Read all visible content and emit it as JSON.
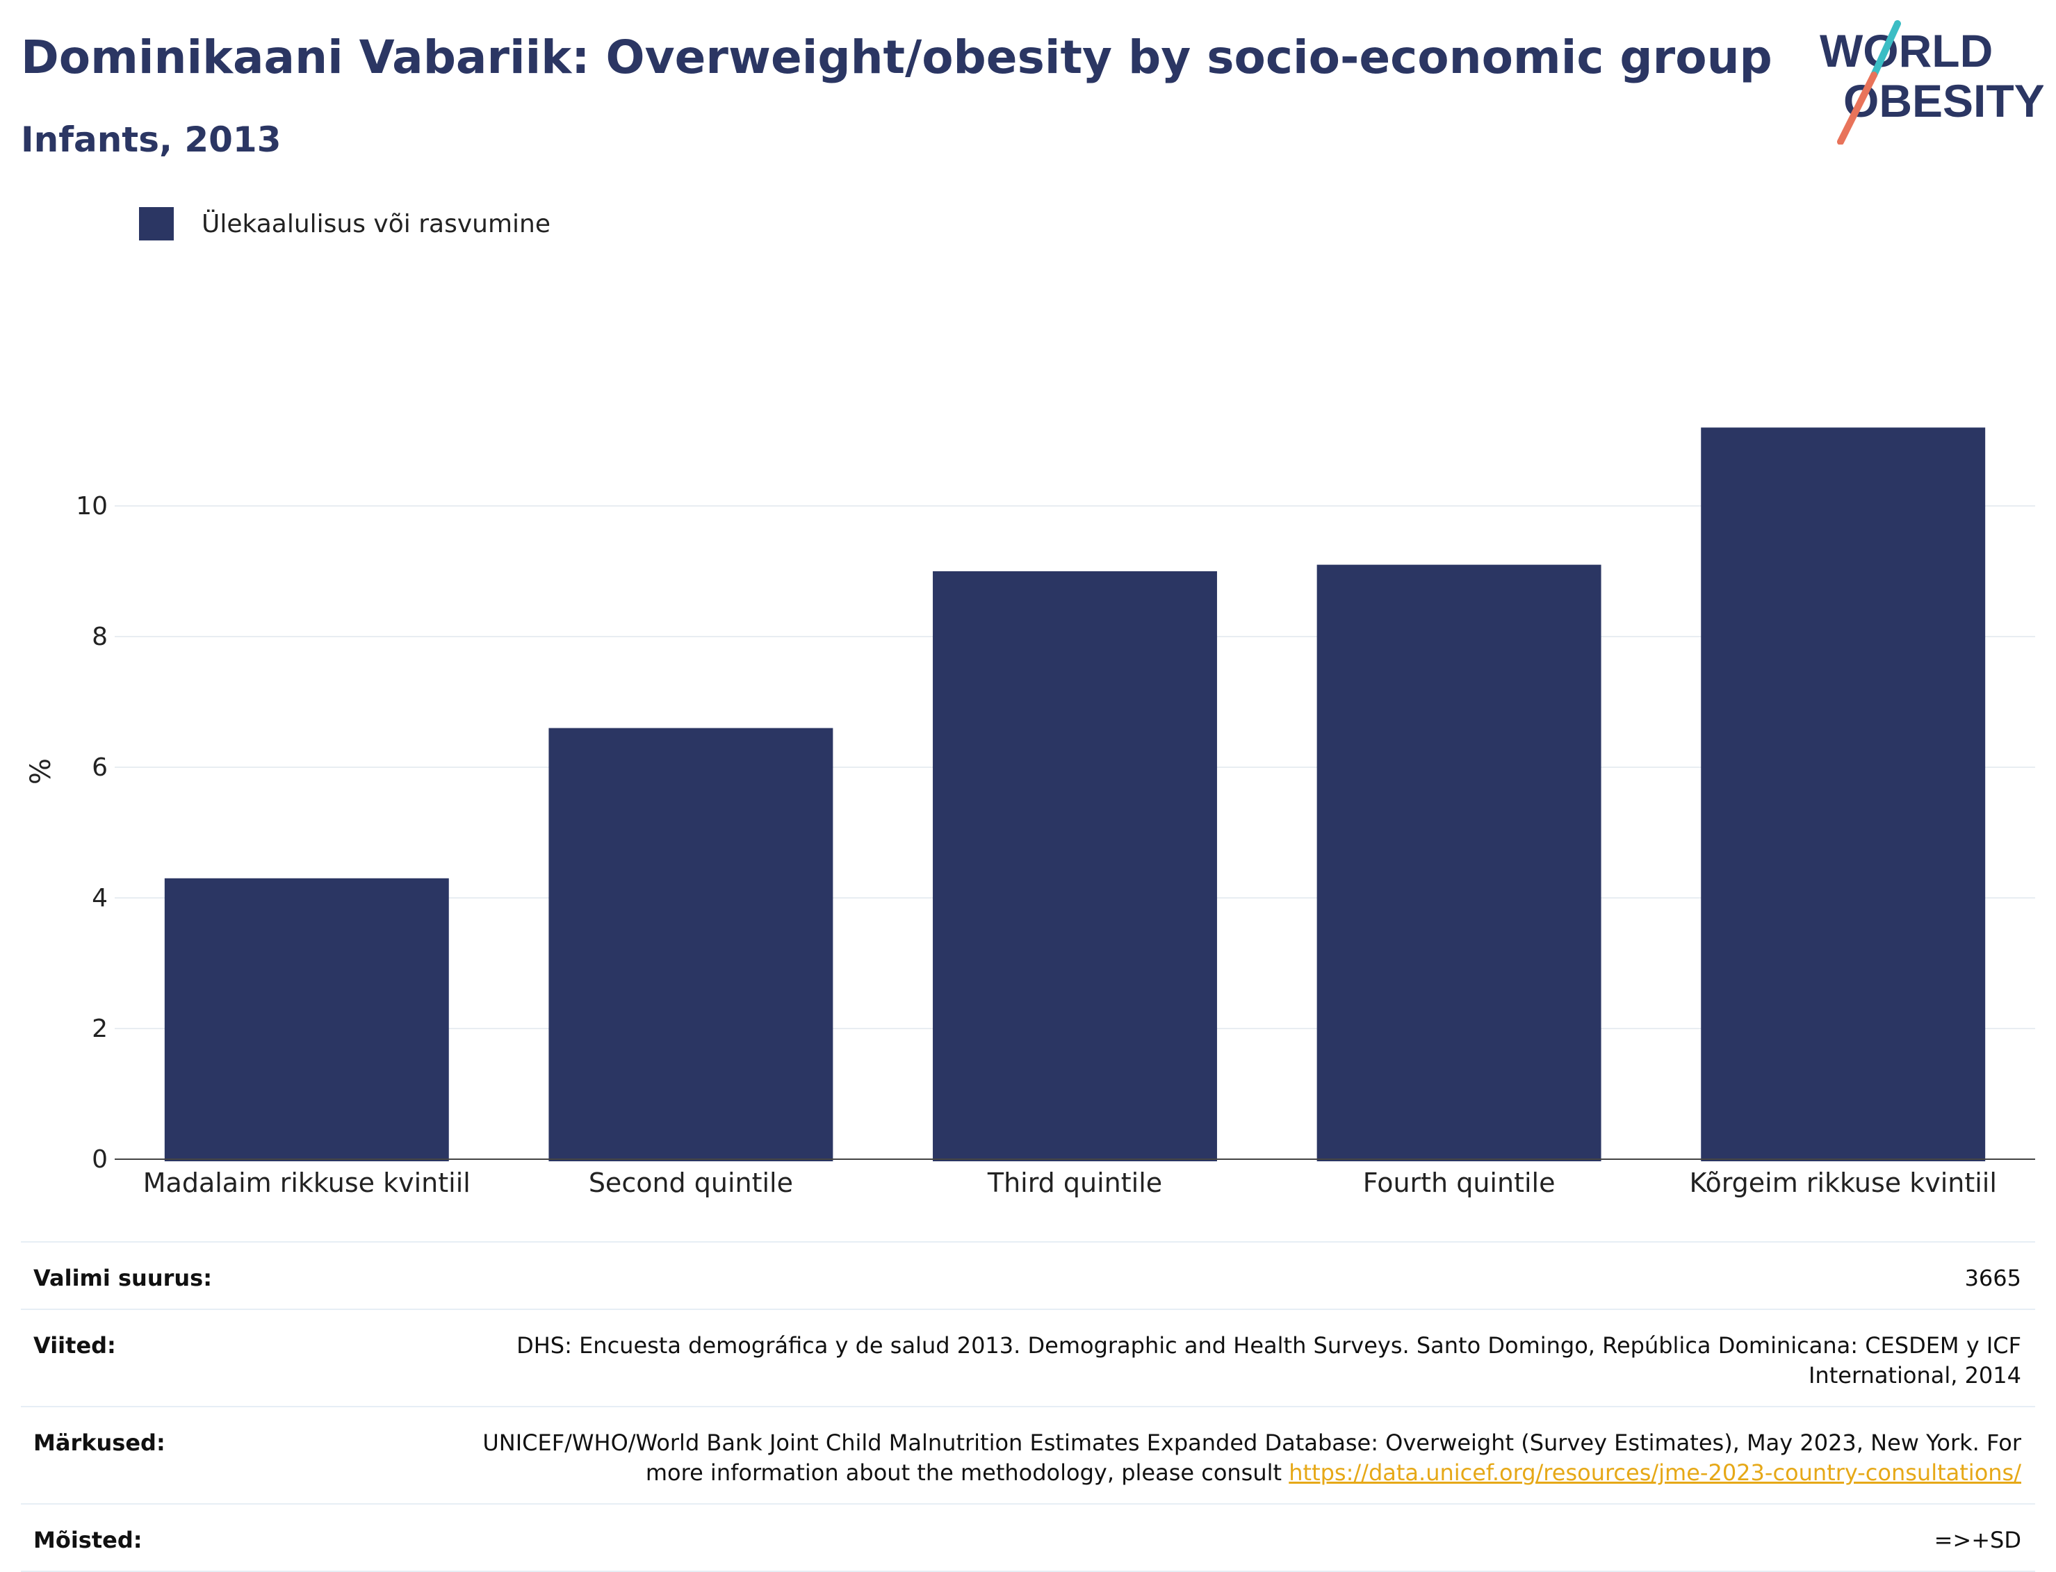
{
  "header": {
    "title": "Dominikaani Vabariik: Overweight/obesity by socio-economic group",
    "subtitle": "Infants, 2013"
  },
  "logo": {
    "line1": "WORLD",
    "line2": "OBESITY",
    "colors": {
      "text": "#2b3663",
      "slash_top": "#3bbdc4",
      "slash_bottom": "#e8735a"
    }
  },
  "legend": {
    "items": [
      {
        "label": "Ülekaalulisus või rasvumine",
        "color": "#2b3663"
      }
    ]
  },
  "chart_data": {
    "type": "bar",
    "title": "Dominikaani Vabariik: Overweight/obesity by socio-economic group",
    "subtitle": "Infants, 2013",
    "categories": [
      "Madalaim rikkuse kvintiil",
      "Second quintile",
      "Third quintile",
      "Fourth quintile",
      "Kõrgeim rikkuse kvintiil"
    ],
    "series": [
      {
        "name": "Ülekaalulisus või rasvumine",
        "values": [
          4.3,
          6.6,
          9.0,
          9.1,
          11.2
        ],
        "color": "#2b3663"
      }
    ],
    "xlabel": "",
    "ylabel": "%",
    "ylim": [
      0,
      12
    ],
    "yticks": [
      0,
      2,
      4,
      6,
      8,
      10
    ],
    "grid": true,
    "legend_position": "top-left"
  },
  "info": {
    "rows": [
      {
        "key": "Valimi suurus:",
        "value": "3665"
      },
      {
        "key": "Viited:",
        "value": "DHS: Encuesta demográfica y de salud 2013. Demographic and Health Surveys. Santo Domingo, República Dominicana: CESDEM y ICF International, 2014"
      },
      {
        "key": "Märkused:",
        "value": "UNICEF/WHO/World Bank Joint Child Malnutrition Estimates Expanded Database: Overweight (Survey Estimates), May 2023, New York. For more information about the methodology, please consult ",
        "link": "https://data.unicef.org/resources/jme-2023-country-consultations/"
      },
      {
        "key": "Mõisted:",
        "value": "=>+SD"
      }
    ]
  }
}
